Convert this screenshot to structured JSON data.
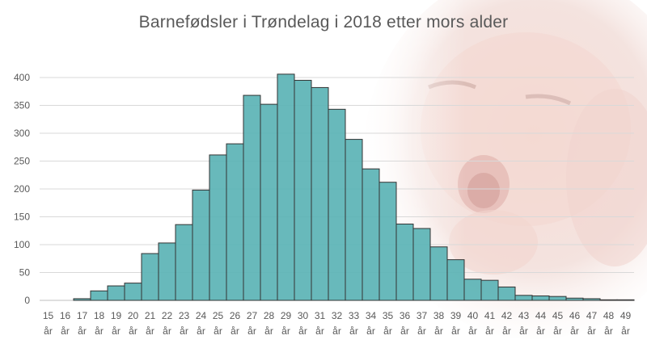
{
  "chart_data": {
    "type": "bar",
    "title": "Barnefødsler  i Trøndelag  i 2018 etter mors alder",
    "xlabel": "",
    "ylabel": "",
    "ylim": [
      0,
      400
    ],
    "yticks": [
      0,
      50,
      100,
      150,
      200,
      250,
      300,
      350,
      400
    ],
    "grid": true,
    "legend": "none",
    "bar_color": "#5BB3B5",
    "bar_edge_color": "#333333",
    "categories": [
      "15 år",
      "16 år",
      "17 år",
      "18 år",
      "19 år",
      "20 år",
      "21 år",
      "22 år",
      "23 år",
      "24 år",
      "25 år",
      "26 år",
      "27 år",
      "28 år",
      "29 år",
      "30 år",
      "31 år",
      "32 år",
      "33 år",
      "34 år",
      "35 år",
      "36 år",
      "37 år",
      "38 år",
      "39 år",
      "40 år",
      "41 år",
      "42 år",
      "43 år",
      "44 år",
      "45 år",
      "46 år",
      "47 år",
      "48 år",
      "49 år"
    ],
    "values": [
      0,
      0,
      3,
      17,
      26,
      31,
      84,
      103,
      136,
      198,
      261,
      281,
      368,
      352,
      406,
      395,
      382,
      343,
      289,
      236,
      212,
      137,
      129,
      96,
      73,
      38,
      36,
      24,
      9,
      8,
      7,
      4,
      3,
      1,
      1
    ]
  }
}
